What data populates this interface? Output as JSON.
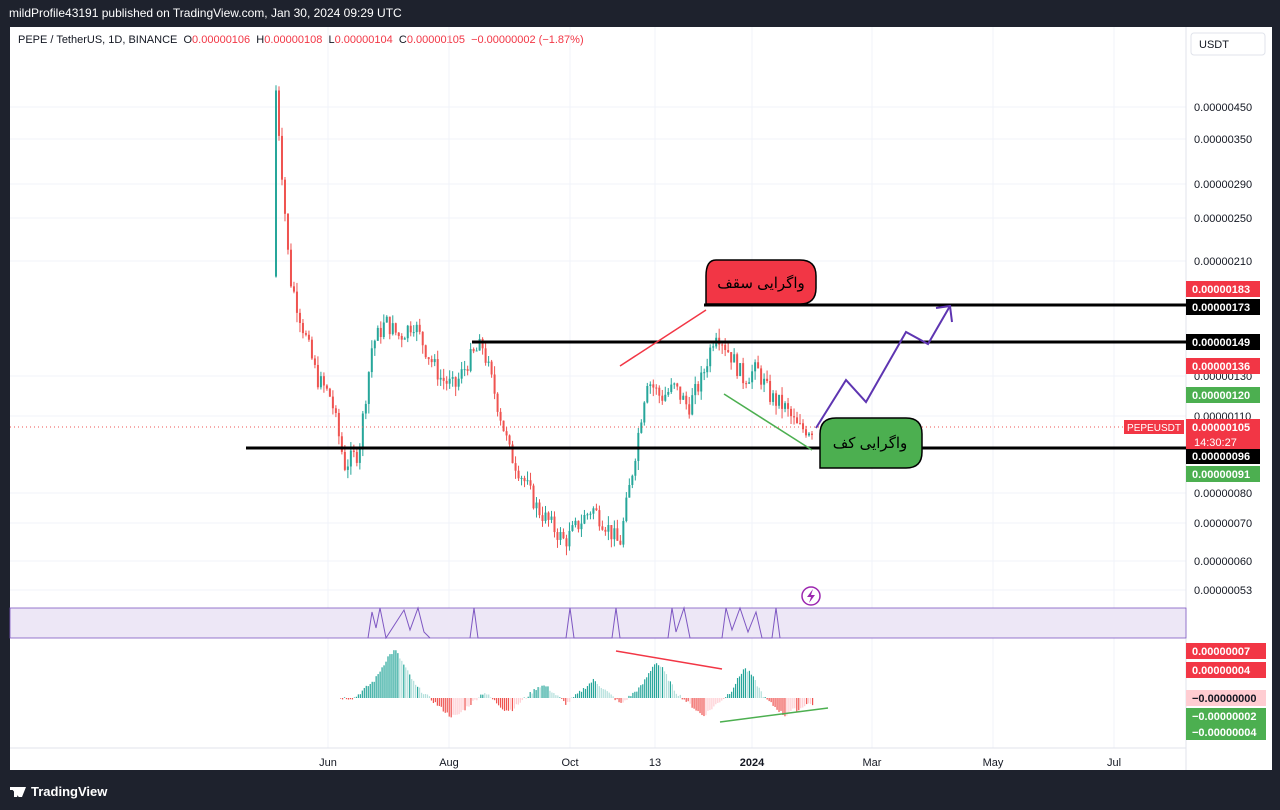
{
  "header": {
    "publish_text": "mildProfile43191 published on TradingView.com, Jan 30, 2024 09:29 UTC"
  },
  "legend": {
    "symbol": "PEPE / TetherUS, 1D, BINANCE",
    "o_label": "O",
    "o_value": "0.00000106",
    "h_label": "H",
    "h_value": "0.00000108",
    "l_label": "L",
    "l_value": "0.00000104",
    "c_label": "C",
    "c_value": "0.00000105",
    "change": "−0.00000002 (−1.87%)"
  },
  "currency": "USDT",
  "footer": {
    "brand": "TradingView"
  },
  "colors": {
    "up": "#26a69a",
    "down": "#ef5350",
    "red_badge": "#f23645",
    "green_badge": "#4caf50",
    "purple": "#5e35b1"
  },
  "chart_data": {
    "type": "candlestick",
    "symbol": "PEPEUSDT",
    "scale": "log",
    "ylim": [
      5e-07,
      4.8e-06
    ],
    "x_ticks": [
      "Jun",
      "Aug",
      "Oct",
      "13",
      "2024",
      "Mar",
      "May",
      "Jul"
    ],
    "y_ticks": [
      "0.00000450",
      "0.00000350",
      "0.00000290",
      "0.00000250",
      "0.00000210",
      "0.00000130",
      "0.00000110",
      "0.00000080",
      "0.00000070",
      "0.00000060",
      "0.00000053"
    ],
    "price_badges": [
      {
        "value": "0.00000183",
        "style": "red"
      },
      {
        "value": "0.00000173",
        "style": "black"
      },
      {
        "value": "0.00000149",
        "style": "black"
      },
      {
        "value": "0.00000136",
        "style": "red"
      },
      {
        "value": "0.00000120",
        "style": "green"
      },
      {
        "value": "0.00000105",
        "style": "red"
      },
      {
        "value": "0.00000096",
        "style": "black"
      },
      {
        "value": "0.00000091",
        "style": "green"
      }
    ],
    "last_price": {
      "symbol_label": "PEPEUSDT",
      "value": "0.00000105",
      "countdown": "14:30:27"
    },
    "price_path": [
      [
        2.6e-06,
        4.4e-06
      ],
      [
        4.1e-06,
        2e-06
      ],
      [
        2.4e-06,
        1.6e-06
      ],
      [
        1.7e-06,
        1.3e-06
      ],
      [
        1.4e-06,
        1.2e-06
      ],
      [
        1.1e-06,
        9e-07
      ],
      [
        1e-06,
        9.5e-07
      ],
      [
        1.3e-06,
        1.5e-06
      ],
      [
        1.6e-06,
        1.65e-06
      ],
      [
        1.7e-06,
        1.55e-06
      ],
      [
        1.6e-06,
        1.65e-06
      ],
      [
        1.5e-06,
        1.45e-06
      ],
      [
        1.4e-06,
        1.3e-06
      ],
      [
        1.3e-06,
        1.25e-06
      ],
      [
        1.2e-06,
        1.4e-06
      ],
      [
        1.4e-06,
        1.5e-06
      ],
      [
        1.3e-06,
        1.2e-06
      ],
      [
        1e-06,
        9.5e-07
      ],
      [
        9e-07,
        8.5e-07
      ],
      [
        8e-07,
        7.5e-07
      ],
      [
        7.5e-07,
        7e-07
      ],
      [
        6.8e-07,
        6.5e-07
      ],
      [
        6.4e-07,
        7e-07
      ],
      [
        7.2e-07,
        7.5e-07
      ],
      [
        7.3e-07,
        7e-07
      ],
      [
        6.8e-07,
        6.4e-07
      ],
      [
        7e-07,
        9e-07
      ],
      [
        1.1e-06,
        1.3e-06
      ],
      [
        1.3e-06,
        1.2e-06
      ],
      [
        1.2e-06,
        1.25e-06
      ],
      [
        1.3e-06,
        1.15e-06
      ],
      [
        1.2e-06,
        1.3e-06
      ],
      [
        1.4e-06,
        1.6e-06
      ],
      [
        1.6e-06,
        1.45e-06
      ],
      [
        1.4e-06,
        1.3e-06
      ],
      [
        1.3e-06,
        1.35e-06
      ],
      [
        1.4e-06,
        1.2e-06
      ],
      [
        1.2e-06,
        1.15e-06
      ],
      [
        1.1e-06,
        1.05e-06
      ],
      [
        1e-06,
        1.05e-06
      ]
    ],
    "indicator": {
      "type": "histogram",
      "values": [
        0,
        0,
        0,
        1,
        2,
        3,
        5,
        7,
        8,
        6,
        4,
        2,
        1,
        0,
        -1,
        -2,
        -3,
        -3,
        -2,
        -1,
        0,
        1,
        0,
        -1,
        -2,
        -2,
        -1,
        0,
        1,
        2,
        2,
        1,
        0,
        -1,
        0,
        1,
        2,
        3,
        2,
        1,
        0,
        -1,
        0,
        1,
        2,
        4,
        6,
        5,
        3,
        1,
        0,
        -1,
        -2,
        -3,
        -2,
        -1,
        0,
        1,
        3,
        5,
        4,
        2,
        0,
        -1,
        -2,
        -3,
        -2,
        -2,
        -1,
        -1
      ],
      "badges": [
        {
          "value": "0.00000007",
          "style": "red"
        },
        {
          "value": "0.00000004",
          "style": "red"
        },
        {
          "value": "−0.00000000",
          "style": "pink"
        },
        {
          "value": "−0.00000002",
          "style": "green"
        },
        {
          "value": "−0.00000004",
          "style": "green"
        }
      ]
    },
    "annotations": [
      {
        "text": "واگرایی سقف",
        "style": "red-bubble"
      },
      {
        "text": "واگرایی کف",
        "style": "green-bubble"
      }
    ]
  }
}
